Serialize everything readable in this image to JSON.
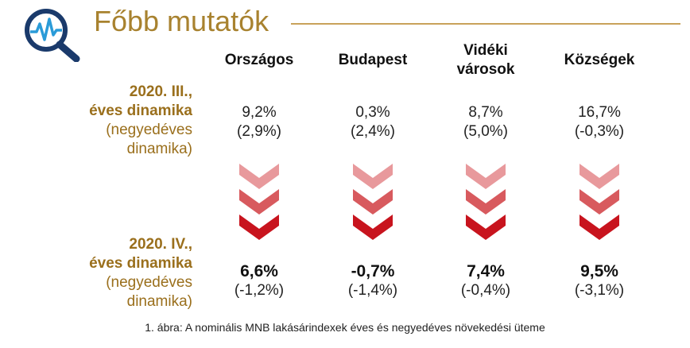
{
  "title": "Főbb mutatók",
  "logo_icon": "magnifier-pulse-icon",
  "columns": [
    "Országos",
    "Budapest",
    "Vidéki városok",
    "Községek"
  ],
  "rows": [
    {
      "label_bold_1": "2020. III.,",
      "label_bold_2": "éves dinamika",
      "label_normal_1": "(negyedéves",
      "label_normal_2": "dinamika)",
      "values": [
        {
          "main": "9,2%",
          "sub": "(2,9%)"
        },
        {
          "main": "0,3%",
          "sub": "(2,4%)"
        },
        {
          "main": "8,7%",
          "sub": "(5,0%)"
        },
        {
          "main": "16,7%",
          "sub": "(-0,3%)"
        }
      ]
    },
    {
      "label_bold_1": "2020. IV.,",
      "label_bold_2": "éves dinamika",
      "label_normal_1": "(negyedéves",
      "label_normal_2": "dinamika)",
      "values": [
        {
          "main": "6,6%",
          "sub": "(-1,2%)"
        },
        {
          "main": "-0,7%",
          "sub": "(-1,4%)"
        },
        {
          "main": "7,4%",
          "sub": "(-0,4%)"
        },
        {
          "main": "9,5%",
          "sub": "(-3,1%)"
        }
      ]
    }
  ],
  "arrow_icon": "chevron-down-triple-icon",
  "arrow_colors": [
    "#e8999c",
    "#d85a5e",
    "#c8141e"
  ],
  "caption": "1. ábra: A nominális MNB lakásárindexek éves és negyedéves növekedési üteme"
}
